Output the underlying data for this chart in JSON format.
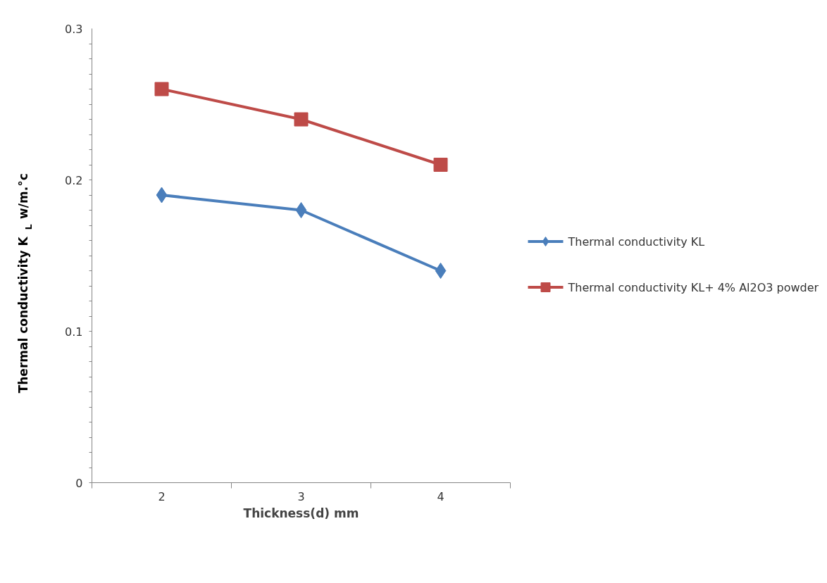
{
  "chart_data": {
    "type": "line",
    "ylabel": "Thermal conductivity K$_{L}$ w/m.°c",
    "xlabel": "Thickness(d) mm",
    "categories": [
      "2",
      "3",
      "4"
    ],
    "ylim": [
      0,
      0.3
    ],
    "yticks": [
      0,
      0.1,
      0.2,
      0.3
    ],
    "grid": false,
    "legend": "right",
    "line_style": "solid",
    "series": [
      {
        "name": "Thermal conductivity KL",
        "color": "#4a7ebb",
        "marker": "diamond",
        "values": [
          0.19,
          0.18,
          0.14
        ]
      },
      {
        "name": "Thermal conductivity KL+ 4% Al2O3 powder",
        "color": "#be4b48",
        "marker": "square",
        "values": [
          0.26,
          0.24,
          0.21
        ]
      }
    ]
  }
}
